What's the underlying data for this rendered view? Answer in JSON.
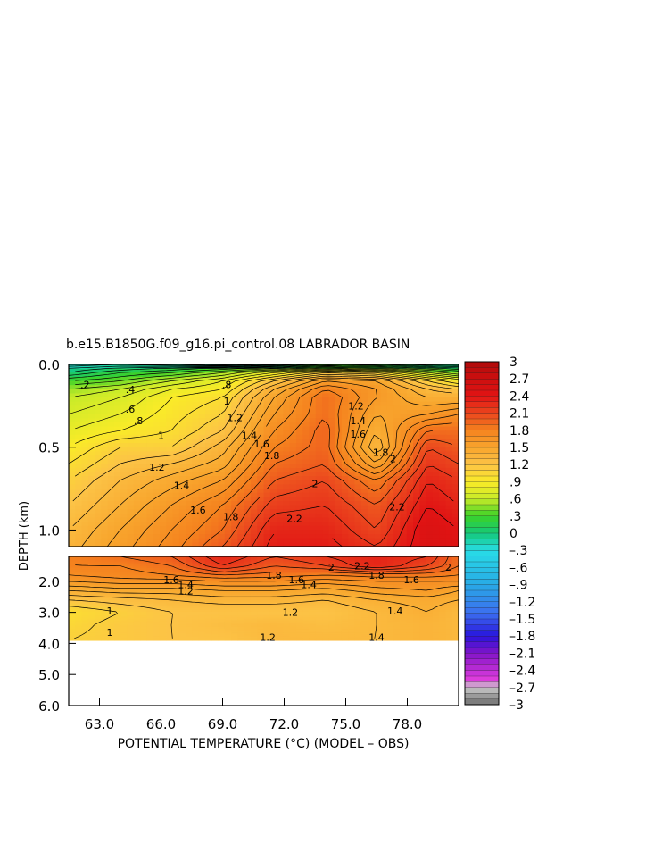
{
  "chart_data": {
    "type": "heatmap",
    "title": "b.e15.B1850G.f09_g16.pi_control.08 LABRADOR BASIN",
    "xlabel": "POTENTIAL TEMPERATURE (°C) (MODEL – OBS)",
    "ylabel": "DEPTH (km)",
    "x_ticks": [
      "63.0",
      "66.0",
      "69.0",
      "72.0",
      "75.0",
      "78.0"
    ],
    "x_tick_values": [
      63,
      66,
      69,
      72,
      75,
      78
    ],
    "xlim": [
      61.5,
      80.5
    ],
    "upper_panel": {
      "ylim": [
        1.1,
        0.0
      ],
      "y_ticks": [
        "0.0",
        "0.5",
        "1.0"
      ],
      "y_tick_values": [
        0.0,
        0.5,
        1.0
      ]
    },
    "lower_panel": {
      "ylim": [
        6.0,
        1.2
      ],
      "y_ticks": [
        "2.0",
        "3.0",
        "4.0",
        "5.0",
        "6.0"
      ],
      "y_tick_values": [
        2.0,
        3.0,
        4.0,
        5.0,
        6.0
      ],
      "data_bottom_depth": 3.9
    },
    "colorbar": {
      "range": [
        -3,
        3
      ],
      "labels": [
        "3",
        "2.7",
        "2.4",
        "2.1",
        "1.8",
        "1.5",
        "1.2",
        ".9",
        ".6",
        ".3",
        "0",
        "–.3",
        "–.6",
        "–.9",
        "–1.2",
        "–1.5",
        "–1.8",
        "–2.1",
        "–2.4",
        "–2.7",
        "–3"
      ],
      "label_values": [
        3,
        2.7,
        2.4,
        2.1,
        1.8,
        1.5,
        1.2,
        0.9,
        0.6,
        0.3,
        0,
        -0.3,
        -0.6,
        -0.9,
        -1.2,
        -1.5,
        -1.8,
        -2.1,
        -2.4,
        -2.7,
        -3
      ]
    },
    "x_grid": [
      61.5,
      64,
      66.5,
      69,
      71.5,
      74,
      76.5,
      79,
      80.5
    ],
    "upper_depths": [
      0.0,
      0.02,
      0.05,
      0.1,
      0.15,
      0.2,
      0.3,
      0.4,
      0.5,
      0.6,
      0.7,
      0.85,
      1.0,
      1.1
    ],
    "upper_values": [
      [
        -0.3,
        -0.2,
        -0.3,
        -0.5,
        -0.3,
        0.1,
        0.0,
        -0.2,
        -0.2
      ],
      [
        -0.1,
        0.0,
        0.1,
        0.2,
        0.3,
        0.5,
        0.4,
        0.2,
        0.1
      ],
      [
        0.0,
        0.2,
        0.3,
        0.5,
        0.8,
        1.1,
        1.0,
        0.6,
        0.4
      ],
      [
        0.3,
        0.4,
        0.6,
        0.8,
        1.2,
        1.6,
        1.5,
        1.1,
        0.9
      ],
      [
        0.5,
        0.6,
        0.8,
        0.9,
        1.4,
        1.8,
        1.6,
        1.3,
        1.2
      ],
      [
        0.6,
        0.7,
        0.9,
        1.0,
        1.5,
        1.9,
        1.6,
        1.4,
        1.4
      ],
      [
        0.7,
        0.8,
        0.95,
        1.1,
        1.6,
        1.9,
        1.5,
        1.6,
        1.7
      ],
      [
        0.8,
        0.9,
        1.0,
        1.2,
        1.7,
        1.95,
        1.4,
        1.9,
        1.9
      ],
      [
        0.9,
        1.1,
        1.1,
        1.35,
        1.8,
        1.95,
        1.3,
        2.1,
        2.0
      ],
      [
        1.0,
        1.2,
        1.3,
        1.45,
        1.9,
        2.0,
        1.5,
        2.2,
        2.1
      ],
      [
        1.1,
        1.3,
        1.45,
        1.6,
        2.0,
        2.1,
        1.8,
        2.3,
        2.2
      ],
      [
        1.2,
        1.4,
        1.6,
        1.8,
        2.15,
        2.2,
        2.0,
        2.4,
        2.3
      ],
      [
        1.3,
        1.5,
        1.7,
        1.9,
        2.3,
        2.3,
        2.1,
        2.5,
        2.4
      ],
      [
        1.35,
        1.55,
        1.75,
        2.0,
        2.35,
        2.35,
        2.2,
        2.5,
        2.45
      ]
    ],
    "lower_depths": [
      1.2,
      1.5,
      1.8,
      2.0,
      2.3,
      2.6,
      3.0,
      3.4,
      3.9
    ],
    "lower_values": [
      [
        1.8,
        1.9,
        2.0,
        2.3,
        2.1,
        2.2,
        2.3,
        2.2,
        1.9
      ],
      [
        1.8,
        1.8,
        1.9,
        2.2,
        2.0,
        2.1,
        2.3,
        2.1,
        1.9
      ],
      [
        1.7,
        1.75,
        1.8,
        1.9,
        1.85,
        1.8,
        1.85,
        1.85,
        1.8
      ],
      [
        1.6,
        1.65,
        1.65,
        1.7,
        1.7,
        1.65,
        1.7,
        1.7,
        1.7
      ],
      [
        1.4,
        1.45,
        1.45,
        1.5,
        1.5,
        1.45,
        1.55,
        1.6,
        1.5
      ],
      [
        1.2,
        1.25,
        1.3,
        1.35,
        1.35,
        1.3,
        1.4,
        1.45,
        1.4
      ],
      [
        1.0,
        1.1,
        1.2,
        1.2,
        1.2,
        1.2,
        1.3,
        1.4,
        1.3
      ],
      [
        1.05,
        1.15,
        1.2,
        1.25,
        1.3,
        1.25,
        1.3,
        1.35,
        1.3
      ],
      [
        1.1,
        1.15,
        1.2,
        1.2,
        1.3,
        1.3,
        1.3,
        1.35,
        1.3
      ]
    ],
    "contour_labels": [
      {
        "text": ".2",
        "x": 62.3,
        "depth": 0.12,
        "panel": "upper"
      },
      {
        "text": ".4",
        "x": 64.5,
        "depth": 0.15,
        "panel": "upper"
      },
      {
        "text": ".6",
        "x": 64.5,
        "depth": 0.27,
        "panel": "upper"
      },
      {
        "text": ".8",
        "x": 64.9,
        "depth": 0.34,
        "panel": "upper"
      },
      {
        "text": "1",
        "x": 66.0,
        "depth": 0.43,
        "panel": "upper"
      },
      {
        "text": "1.2",
        "x": 65.8,
        "depth": 0.62,
        "panel": "upper"
      },
      {
        "text": "1.4",
        "x": 67.0,
        "depth": 0.73,
        "panel": "upper"
      },
      {
        "text": "1.6",
        "x": 67.8,
        "depth": 0.88,
        "panel": "upper"
      },
      {
        "text": "1.8",
        "x": 69.4,
        "depth": 0.92,
        "panel": "upper"
      },
      {
        "text": "1.8",
        "x": 71.4,
        "depth": 0.55,
        "panel": "upper"
      },
      {
        "text": "1.6",
        "x": 70.9,
        "depth": 0.48,
        "panel": "upper"
      },
      {
        "text": "1.4",
        "x": 70.3,
        "depth": 0.43,
        "panel": "upper"
      },
      {
        "text": "1.2",
        "x": 69.6,
        "depth": 0.32,
        "panel": "upper"
      },
      {
        "text": "1",
        "x": 69.2,
        "depth": 0.22,
        "panel": "upper"
      },
      {
        "text": ".8",
        "x": 69.2,
        "depth": 0.12,
        "panel": "upper"
      },
      {
        "text": "2",
        "x": 73.5,
        "depth": 0.72,
        "panel": "upper"
      },
      {
        "text": "2.2",
        "x": 72.5,
        "depth": 0.93,
        "panel": "upper"
      },
      {
        "text": "1.2",
        "x": 75.5,
        "depth": 0.25,
        "panel": "upper"
      },
      {
        "text": "1.4",
        "x": 75.6,
        "depth": 0.34,
        "panel": "upper"
      },
      {
        "text": "1.6",
        "x": 75.6,
        "depth": 0.42,
        "panel": "upper"
      },
      {
        "text": "1.8",
        "x": 76.7,
        "depth": 0.53,
        "panel": "upper"
      },
      {
        "text": "2",
        "x": 77.3,
        "depth": 0.57,
        "panel": "upper"
      },
      {
        "text": "2.2",
        "x": 77.5,
        "depth": 0.86,
        "panel": "upper"
      },
      {
        "text": "1.6",
        "x": 66.5,
        "depth": 1.95,
        "panel": "lower"
      },
      {
        "text": "1.4",
        "x": 67.2,
        "depth": 2.1,
        "panel": "lower"
      },
      {
        "text": "1.2",
        "x": 67.2,
        "depth": 2.3,
        "panel": "lower"
      },
      {
        "text": "1.8",
        "x": 71.5,
        "depth": 1.8,
        "panel": "lower"
      },
      {
        "text": "1.6",
        "x": 72.6,
        "depth": 1.95,
        "panel": "lower"
      },
      {
        "text": "1.4",
        "x": 73.2,
        "depth": 2.1,
        "panel": "lower"
      },
      {
        "text": "2",
        "x": 74.3,
        "depth": 1.55,
        "panel": "lower"
      },
      {
        "text": "2.2",
        "x": 75.8,
        "depth": 1.5,
        "panel": "lower"
      },
      {
        "text": "1.8",
        "x": 76.5,
        "depth": 1.8,
        "panel": "lower"
      },
      {
        "text": "1.6",
        "x": 78.2,
        "depth": 1.95,
        "panel": "lower"
      },
      {
        "text": "2",
        "x": 80.0,
        "depth": 1.55,
        "panel": "lower"
      },
      {
        "text": "1",
        "x": 63.5,
        "depth": 2.95,
        "panel": "lower"
      },
      {
        "text": "1",
        "x": 63.5,
        "depth": 3.65,
        "panel": "lower"
      },
      {
        "text": "1.2",
        "x": 72.3,
        "depth": 3.0,
        "panel": "lower"
      },
      {
        "text": "1.2",
        "x": 71.2,
        "depth": 3.8,
        "panel": "lower"
      },
      {
        "text": "1.4",
        "x": 77.4,
        "depth": 2.95,
        "panel": "lower"
      },
      {
        "text": "1.4",
        "x": 76.5,
        "depth": 3.8,
        "panel": "lower"
      }
    ]
  }
}
